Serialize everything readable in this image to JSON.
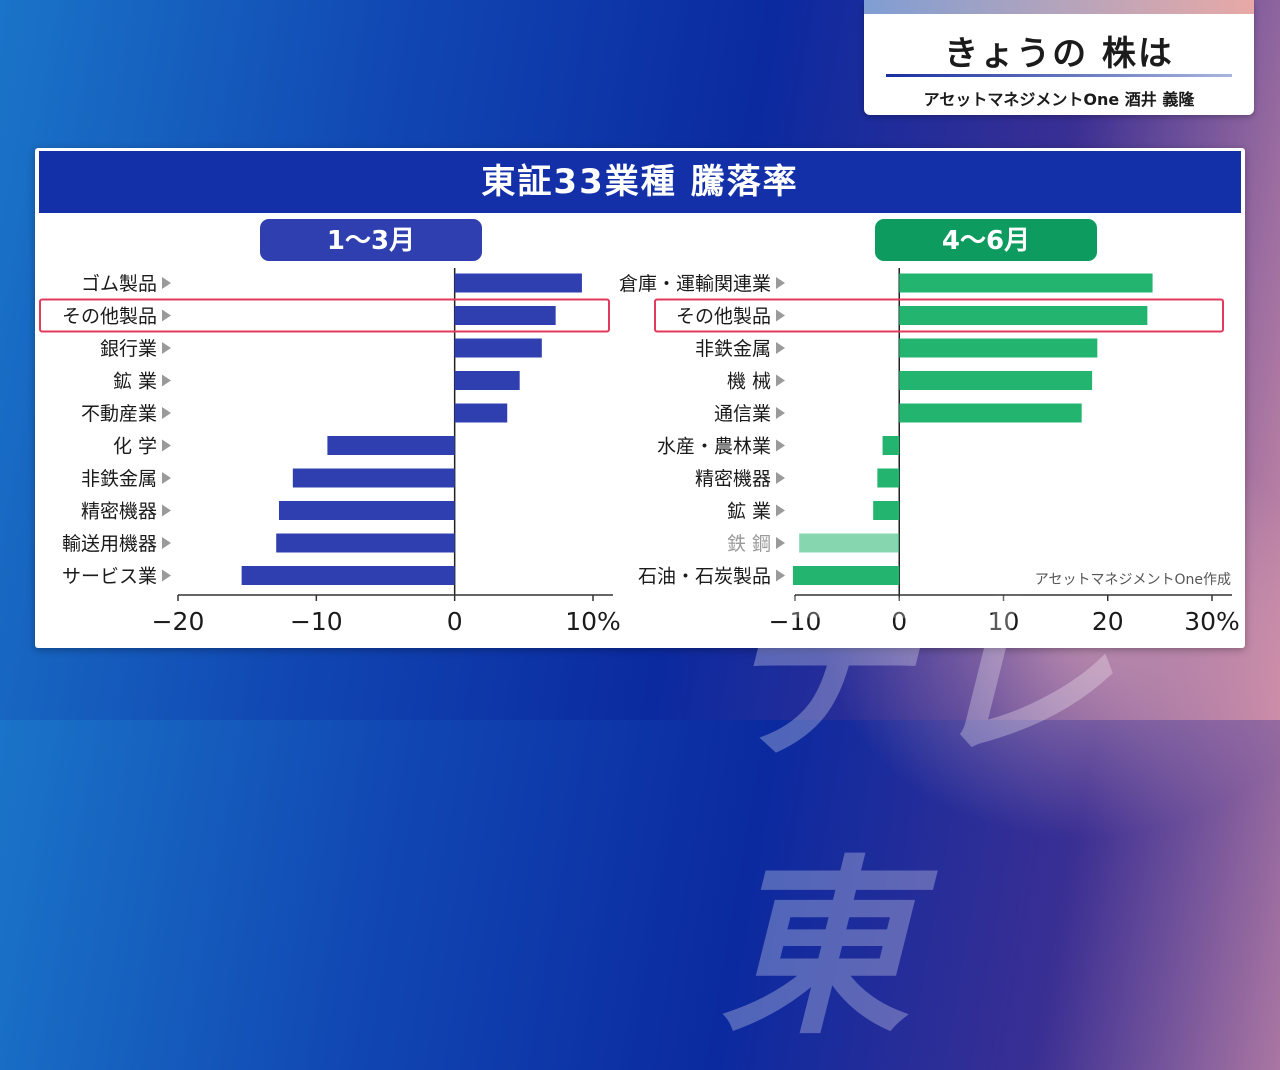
{
  "header": {
    "title": "きょうの 株は",
    "subtitle": "アセットマネジメントOne 酒井 義隆"
  },
  "panel_title": "東証33業種 騰落率",
  "chart_data": [
    {
      "type": "bar",
      "orientation": "horizontal",
      "period": "1〜3月",
      "period_color": "#2f3fb0",
      "bar_color": "#2f3fb0",
      "categories": [
        "ゴム製品",
        "その他製品",
        "銀行業",
        "鉱 業",
        "不動産業",
        "化 学",
        "非鉄金属",
        "精密機器",
        "輸送用機器",
        "サービス業"
      ],
      "values": [
        9.2,
        7.3,
        6.3,
        4.7,
        3.8,
        -9.2,
        -11.7,
        -12.7,
        -12.9,
        -15.4
      ],
      "highlight": "その他製品",
      "xlim": [
        -20,
        10
      ],
      "ticks": [
        "−20",
        "−10",
        "0",
        "10%"
      ],
      "tick_values": [
        -20,
        -10,
        0,
        10
      ]
    },
    {
      "type": "bar",
      "orientation": "horizontal",
      "period": "4〜6月",
      "period_color": "#0e9b5f",
      "bar_color": "#23b46f",
      "categories": [
        "倉庫・運輸関連業",
        "その他製品",
        "非鉄金属",
        "機 械",
        "通信業",
        "水産・農林業",
        "精密機器",
        "鉱 業",
        "鉄 鋼",
        "石油・石炭製品"
      ],
      "values": [
        24.3,
        23.8,
        19.0,
        18.5,
        17.5,
        -1.6,
        -2.1,
        -2.5,
        -9.6,
        -10.2
      ],
      "highlight": "その他製品",
      "faded": "鉄 鋼",
      "xlim": [
        -10,
        30
      ],
      "ticks": [
        "−10",
        "0",
        "10",
        "20",
        "30%"
      ],
      "tick_values": [
        -10,
        0,
        10,
        20,
        30
      ],
      "source": "アセットマネジメントOne作成"
    }
  ],
  "watermark": "テレ東"
}
